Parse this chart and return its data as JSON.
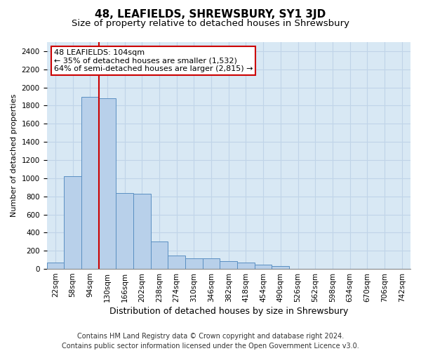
{
  "title": "48, LEAFIELDS, SHREWSBURY, SY1 3JD",
  "subtitle": "Size of property relative to detached houses in Shrewsbury",
  "xlabel": "Distribution of detached houses by size in Shrewsbury",
  "ylabel": "Number of detached properties",
  "footer_line1": "Contains HM Land Registry data © Crown copyright and database right 2024.",
  "footer_line2": "Contains public sector information licensed under the Open Government Licence v3.0.",
  "bin_labels": [
    "22sqm",
    "58sqm",
    "94sqm",
    "130sqm",
    "166sqm",
    "202sqm",
    "238sqm",
    "274sqm",
    "310sqm",
    "346sqm",
    "382sqm",
    "418sqm",
    "454sqm",
    "490sqm",
    "526sqm",
    "562sqm",
    "598sqm",
    "634sqm",
    "670sqm",
    "706sqm",
    "742sqm"
  ],
  "bar_values": [
    70,
    1020,
    1900,
    1880,
    840,
    830,
    305,
    150,
    120,
    118,
    82,
    68,
    50,
    30,
    0,
    0,
    0,
    0,
    0,
    0,
    0
  ],
  "bar_color": "#b8d0ea",
  "bar_edge_color": "#5a8fc2",
  "grid_color": "#c0d4e8",
  "background_color": "#d8e8f4",
  "annotation_line1": "48 LEAFIELDS: 104sqm",
  "annotation_line2": "← 35% of detached houses are smaller (1,532)",
  "annotation_line3": "64% of semi-detached houses are larger (2,815) →",
  "annotation_box_facecolor": "#ffffff",
  "annotation_box_edgecolor": "#cc0000",
  "vline_position": 2.5,
  "vline_color": "#cc0000",
  "ylim": [
    0,
    2500
  ],
  "yticks": [
    0,
    200,
    400,
    600,
    800,
    1000,
    1200,
    1400,
    1600,
    1800,
    2000,
    2200,
    2400
  ],
  "title_fontsize": 11,
  "subtitle_fontsize": 9.5,
  "xlabel_fontsize": 9,
  "ylabel_fontsize": 8,
  "tick_fontsize": 7.5,
  "annot_fontsize": 8,
  "footer_fontsize": 7
}
